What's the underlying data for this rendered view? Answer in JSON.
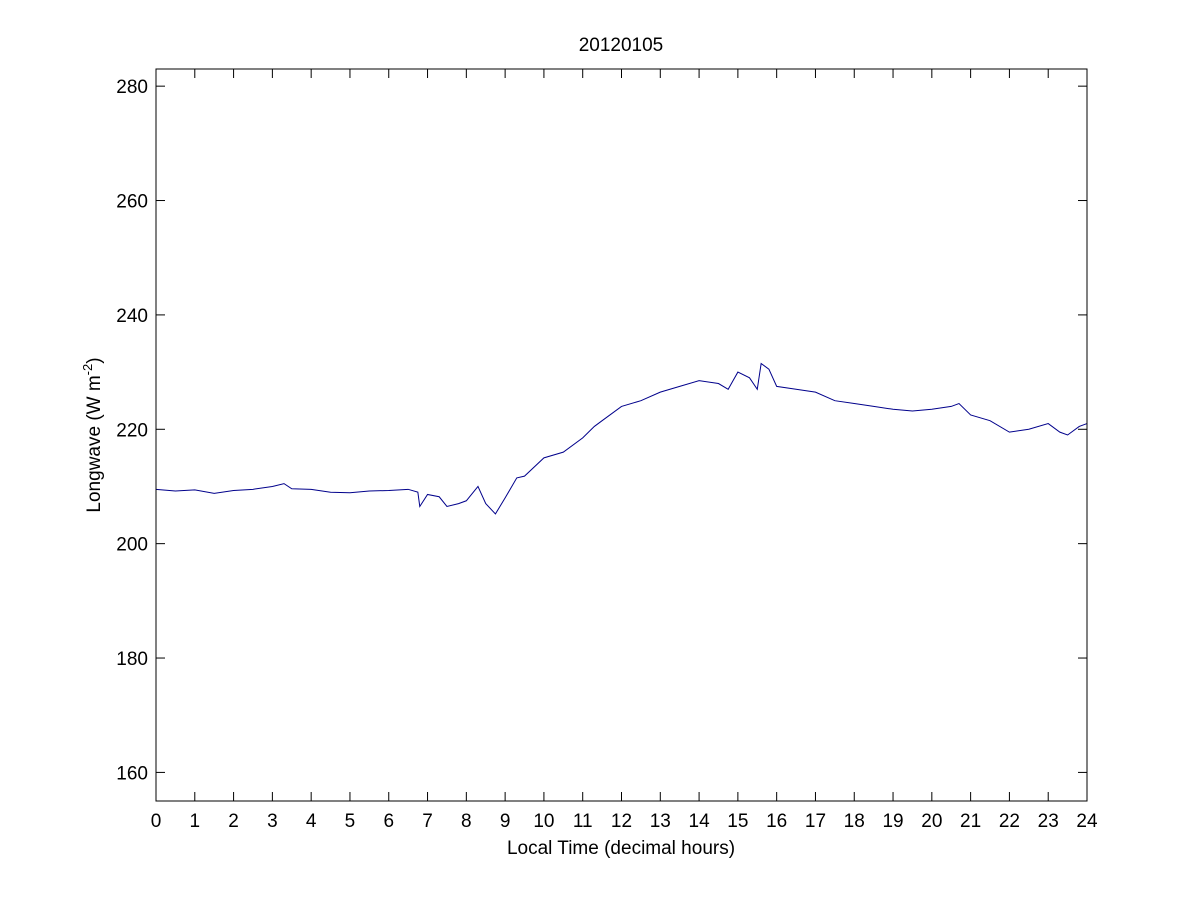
{
  "chart_data": {
    "type": "line",
    "title": "20120105",
    "xlabel": "Local Time (decimal hours)",
    "ylabel_main": "Longwave (W m",
    "ylabel_sup": "-2",
    "ylabel_close": ")",
    "xlim": [
      0,
      24
    ],
    "ylim": [
      155,
      283
    ],
    "xticks": [
      0,
      1,
      2,
      3,
      4,
      5,
      6,
      7,
      8,
      9,
      10,
      11,
      12,
      13,
      14,
      15,
      16,
      17,
      18,
      19,
      20,
      21,
      22,
      23,
      24
    ],
    "yticks": [
      160,
      180,
      200,
      220,
      240,
      260,
      280
    ],
    "grid": false,
    "line_color": "#00008b",
    "series": [
      {
        "x": [
          0,
          0.5,
          1,
          1.5,
          2,
          2.5,
          3,
          3.3,
          3.5,
          4,
          4.5,
          5,
          5.5,
          6,
          6.5,
          6.75,
          6.8,
          7,
          7.3,
          7.5,
          7.8,
          8,
          8.3,
          8.5,
          8.75,
          9,
          9.3,
          9.5,
          10,
          10.5,
          11,
          11.3,
          11.5,
          12,
          12.5,
          13,
          13.5,
          14,
          14.5,
          14.75,
          15,
          15.3,
          15.5,
          15.6,
          15.8,
          16,
          16.5,
          17,
          17.5,
          18,
          18.5,
          19,
          19.5,
          20,
          20.5,
          20.7,
          21,
          21.5,
          22,
          22.5,
          23,
          23.3,
          23.5,
          23.8,
          24
        ],
        "y": [
          209.5,
          209.2,
          209.4,
          208.8,
          209.3,
          209.5,
          210.0,
          210.5,
          209.6,
          209.5,
          209.0,
          208.9,
          209.2,
          209.3,
          209.5,
          209.0,
          206.5,
          208.6,
          208.2,
          206.5,
          207.0,
          207.5,
          210.0,
          207.0,
          205.2,
          208.0,
          211.5,
          211.8,
          215.0,
          216.0,
          218.5,
          220.5,
          221.5,
          224.0,
          225.0,
          226.5,
          227.5,
          228.5,
          228.0,
          227.0,
          230.0,
          229.0,
          227.0,
          231.5,
          230.5,
          227.5,
          227.0,
          226.5,
          225.0,
          224.5,
          224.0,
          223.5,
          223.2,
          223.5,
          224.0,
          224.5,
          222.5,
          221.5,
          219.5,
          220.0,
          221.0,
          219.5,
          219.0,
          220.5,
          221.0
        ]
      }
    ]
  }
}
